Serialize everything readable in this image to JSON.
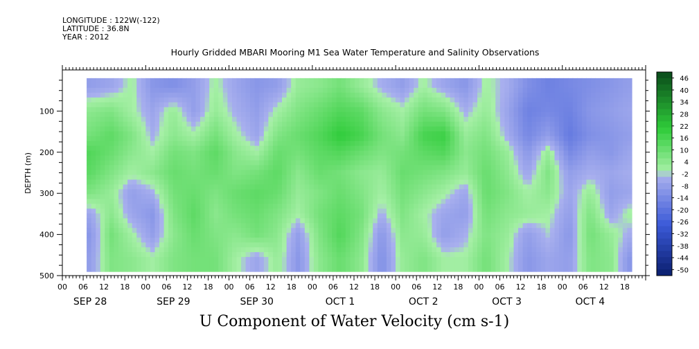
{
  "header": {
    "longitude": "LONGITUDE : 122W(-122)",
    "latitude": "LATITUDE : 36.8N",
    "year": "YEAR : 2012"
  },
  "title": "Hourly Gridded MBARI Mooring M1 Sea Water Temperature and Salinity Observations",
  "footer_label": "U Component of Water Velocity (cm s-1)",
  "chart_data": {
    "type": "heatmap",
    "title": "Hourly Gridded MBARI Mooring M1 Sea Water Temperature and Salinity Observations",
    "xlabel": "",
    "ylabel": "DEPTH (m)",
    "colorbar_label": "U Component of Water Velocity (cm s-1)",
    "x_range_hours": [
      0,
      168
    ],
    "x_unit": "hours from 2012-09-28 00:00",
    "data_x_start_hour": 7,
    "data_x_end_hour": 164,
    "ylim": [
      500,
      0
    ],
    "data_depth_range": [
      20,
      490
    ],
    "y_ticks": [
      100,
      200,
      300,
      400,
      500
    ],
    "x_tick_labels": [
      "00",
      "06",
      "12",
      "18",
      "00",
      "06",
      "12",
      "18",
      "00",
      "06",
      "12",
      "18",
      "00",
      "06",
      "12",
      "18",
      "00",
      "06",
      "12",
      "18",
      "00",
      "06",
      "12",
      "18",
      "00",
      "06",
      "12",
      "18"
    ],
    "date_labels": [
      "SEP 28",
      "SEP 29",
      "SEP 30",
      "OCT  1",
      "OCT  2",
      "OCT  3",
      "OCT  4"
    ],
    "colorbar_levels": [
      "46",
      "40",
      "34",
      "28",
      "22",
      "16",
      "10",
      "4",
      "-2",
      "-8",
      "-14",
      "-20",
      "-26",
      "-32",
      "-38",
      "-44",
      "-50"
    ],
    "colorbar_range": [
      -50,
      50
    ],
    "colormap": "blue-white-green",
    "colors": {
      "neg_max": "#0a1e6e",
      "neg_mid": "#3c5ad8",
      "neg_low": "#a9b0ee",
      "pos_low": "#a8f0a8",
      "pos_mid": "#2fcc3a",
      "pos_max": "#0a4a1a"
    },
    "value_grid_depth_rows": [
      40,
      100,
      160,
      200,
      250,
      300,
      350,
      400,
      460
    ],
    "value_grid_hour_cols": [
      8,
      14,
      20,
      26,
      32,
      38,
      44,
      50,
      56,
      62,
      68,
      74,
      80,
      86,
      92,
      98,
      104,
      110,
      116,
      122,
      128,
      134,
      140,
      146,
      152,
      158,
      163
    ],
    "values": [
      [
        -6,
        -4,
        2,
        -8,
        -10,
        -6,
        2,
        -4,
        -8,
        -6,
        4,
        6,
        10,
        4,
        -2,
        -6,
        2,
        -4,
        -8,
        2,
        -2,
        -10,
        -14,
        -12,
        -10,
        -8,
        -6
      ],
      [
        6,
        8,
        2,
        -4,
        4,
        -6,
        4,
        -2,
        -6,
        2,
        8,
        12,
        16,
        14,
        6,
        2,
        10,
        8,
        -2,
        4,
        -4,
        -14,
        -12,
        -14,
        -8,
        -6,
        -4
      ],
      [
        10,
        14,
        8,
        -2,
        6,
        2,
        10,
        2,
        -4,
        8,
        12,
        16,
        22,
        18,
        10,
        6,
        18,
        20,
        4,
        8,
        -2,
        -12,
        -6,
        -16,
        -10,
        -8,
        -6
      ],
      [
        16,
        12,
        6,
        2,
        10,
        8,
        14,
        6,
        2,
        12,
        10,
        14,
        16,
        12,
        8,
        10,
        14,
        16,
        6,
        10,
        4,
        -8,
        4,
        -12,
        -6,
        -8,
        -4
      ],
      [
        14,
        8,
        2,
        6,
        12,
        10,
        12,
        8,
        10,
        14,
        6,
        12,
        10,
        6,
        4,
        12,
        10,
        8,
        4,
        12,
        6,
        -4,
        8,
        -6,
        -2,
        -4,
        -2
      ],
      [
        8,
        4,
        -6,
        -2,
        10,
        12,
        8,
        12,
        14,
        12,
        4,
        8,
        12,
        8,
        2,
        10,
        6,
        2,
        -4,
        12,
        8,
        2,
        6,
        -4,
        4,
        -6,
        -4
      ],
      [
        -4,
        6,
        -4,
        -8,
        8,
        14,
        6,
        10,
        12,
        8,
        2,
        10,
        14,
        10,
        -2,
        8,
        2,
        -4,
        -6,
        10,
        6,
        4,
        2,
        -6,
        8,
        -4,
        2
      ],
      [
        -8,
        10,
        2,
        -6,
        6,
        12,
        8,
        6,
        10,
        6,
        -6,
        8,
        16,
        8,
        -8,
        6,
        4,
        -6,
        -2,
        8,
        4,
        -6,
        0,
        -8,
        10,
        4,
        -2
      ],
      [
        -6,
        8,
        6,
        2,
        8,
        10,
        10,
        2,
        -4,
        4,
        -8,
        6,
        12,
        6,
        -10,
        4,
        8,
        2,
        2,
        10,
        2,
        -8,
        -4,
        -6,
        8,
        6,
        -8
      ]
    ]
  }
}
